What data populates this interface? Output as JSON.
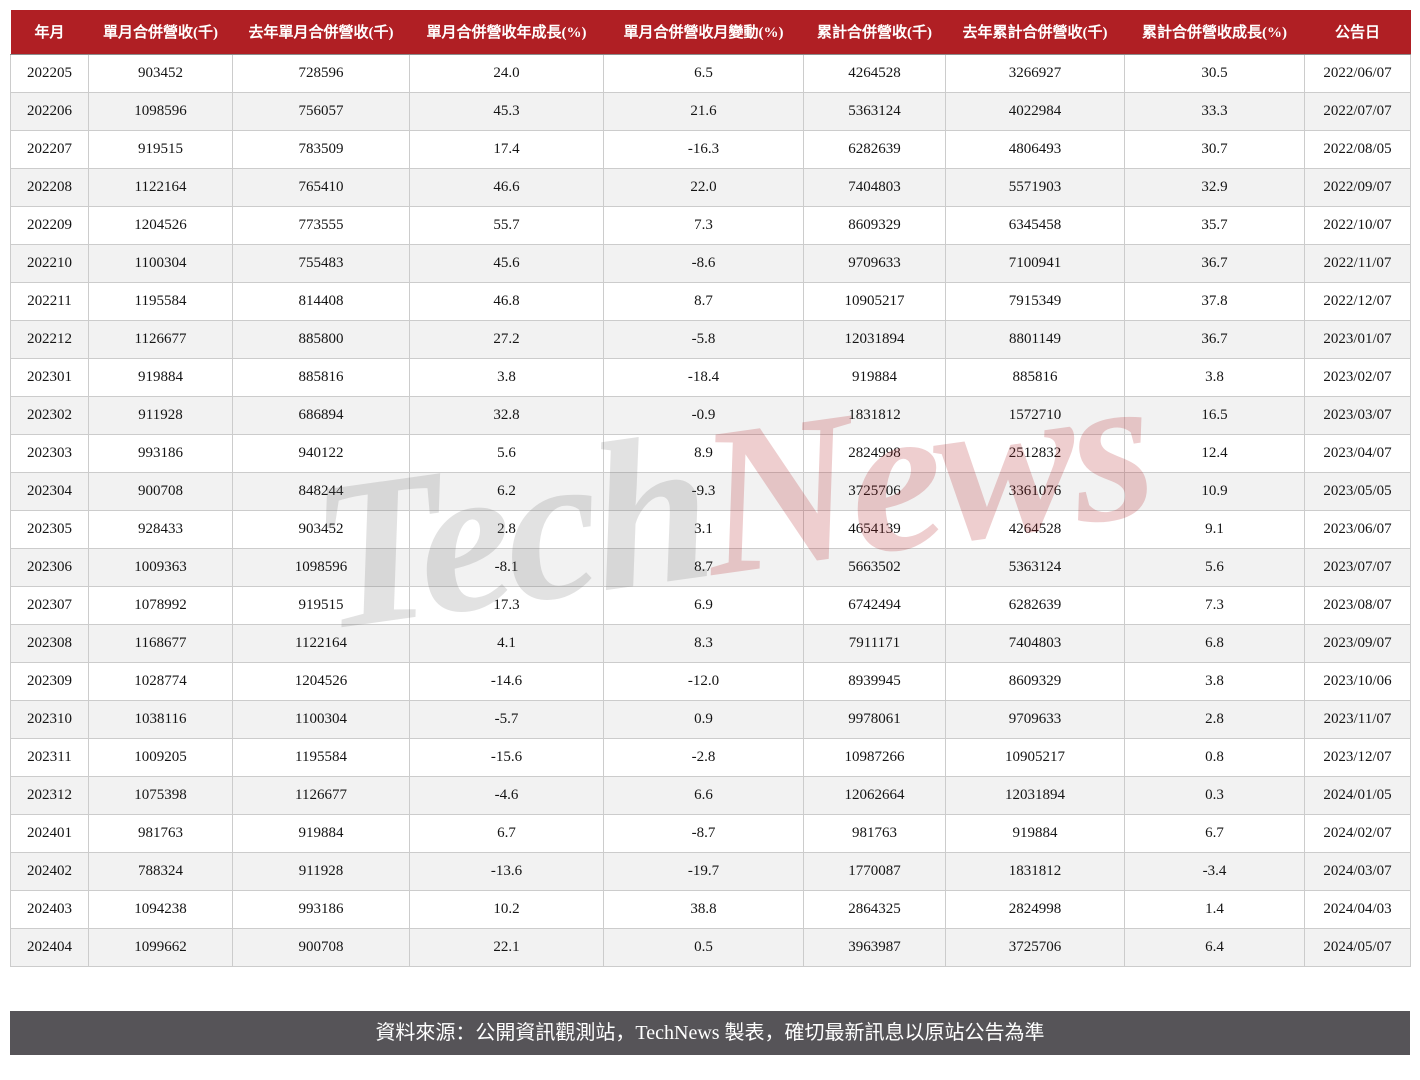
{
  "chart_data": {
    "type": "table",
    "columns": [
      "年月",
      "單月合併營收(千)",
      "去年單月合併營收(千)",
      "單月合併營收年成長(%)",
      "單月合併營收月變動(%)",
      "累計合併營收(千)",
      "去年累計合併營收(千)",
      "累計合併營收成長(%)",
      "公告日"
    ],
    "rows": [
      [
        "202205",
        "903452",
        "728596",
        "24.0",
        "6.5",
        "4264528",
        "3266927",
        "30.5",
        "2022/06/07"
      ],
      [
        "202206",
        "1098596",
        "756057",
        "45.3",
        "21.6",
        "5363124",
        "4022984",
        "33.3",
        "2022/07/07"
      ],
      [
        "202207",
        "919515",
        "783509",
        "17.4",
        "-16.3",
        "6282639",
        "4806493",
        "30.7",
        "2022/08/05"
      ],
      [
        "202208",
        "1122164",
        "765410",
        "46.6",
        "22.0",
        "7404803",
        "5571903",
        "32.9",
        "2022/09/07"
      ],
      [
        "202209",
        "1204526",
        "773555",
        "55.7",
        "7.3",
        "8609329",
        "6345458",
        "35.7",
        "2022/10/07"
      ],
      [
        "202210",
        "1100304",
        "755483",
        "45.6",
        "-8.6",
        "9709633",
        "7100941",
        "36.7",
        "2022/11/07"
      ],
      [
        "202211",
        "1195584",
        "814408",
        "46.8",
        "8.7",
        "10905217",
        "7915349",
        "37.8",
        "2022/12/07"
      ],
      [
        "202212",
        "1126677",
        "885800",
        "27.2",
        "-5.8",
        "12031894",
        "8801149",
        "36.7",
        "2023/01/07"
      ],
      [
        "202301",
        "919884",
        "885816",
        "3.8",
        "-18.4",
        "919884",
        "885816",
        "3.8",
        "2023/02/07"
      ],
      [
        "202302",
        "911928",
        "686894",
        "32.8",
        "-0.9",
        "1831812",
        "1572710",
        "16.5",
        "2023/03/07"
      ],
      [
        "202303",
        "993186",
        "940122",
        "5.6",
        "8.9",
        "2824998",
        "2512832",
        "12.4",
        "2023/04/07"
      ],
      [
        "202304",
        "900708",
        "848244",
        "6.2",
        "-9.3",
        "3725706",
        "3361076",
        "10.9",
        "2023/05/05"
      ],
      [
        "202305",
        "928433",
        "903452",
        "2.8",
        "3.1",
        "4654139",
        "4264528",
        "9.1",
        "2023/06/07"
      ],
      [
        "202306",
        "1009363",
        "1098596",
        "-8.1",
        "8.7",
        "5663502",
        "5363124",
        "5.6",
        "2023/07/07"
      ],
      [
        "202307",
        "1078992",
        "919515",
        "17.3",
        "6.9",
        "6742494",
        "6282639",
        "7.3",
        "2023/08/07"
      ],
      [
        "202308",
        "1168677",
        "1122164",
        "4.1",
        "8.3",
        "7911171",
        "7404803",
        "6.8",
        "2023/09/07"
      ],
      [
        "202309",
        "1028774",
        "1204526",
        "-14.6",
        "-12.0",
        "8939945",
        "8609329",
        "3.8",
        "2023/10/06"
      ],
      [
        "202310",
        "1038116",
        "1100304",
        "-5.7",
        "0.9",
        "9978061",
        "9709633",
        "2.8",
        "2023/11/07"
      ],
      [
        "202311",
        "1009205",
        "1195584",
        "-15.6",
        "-2.8",
        "10987266",
        "10905217",
        "0.8",
        "2023/12/07"
      ],
      [
        "202312",
        "1075398",
        "1126677",
        "-4.6",
        "6.6",
        "12062664",
        "12031894",
        "0.3",
        "2024/01/05"
      ],
      [
        "202401",
        "981763",
        "919884",
        "6.7",
        "-8.7",
        "981763",
        "919884",
        "6.7",
        "2024/02/07"
      ],
      [
        "202402",
        "788324",
        "911928",
        "-13.6",
        "-19.7",
        "1770087",
        "1831812",
        "-3.4",
        "2024/03/07"
      ],
      [
        "202403",
        "1094238",
        "993186",
        "10.2",
        "38.8",
        "2864325",
        "2824998",
        "1.4",
        "2024/04/03"
      ],
      [
        "202404",
        "1099662",
        "900708",
        "22.1",
        "0.5",
        "3963987",
        "3725706",
        "6.4",
        "2024/05/07"
      ]
    ],
    "title": "",
    "legend_position": "none",
    "grid": true
  },
  "watermark": {
    "tech": "Tech",
    "news": "News"
  },
  "footer": {
    "text": "資料來源：公開資訊觀測站，TechNews 製表，確切最新訊息以原站公告為準"
  },
  "colors": {
    "header_bg": "#b01f24",
    "header_text": "#ffffff",
    "row_alt": "#f2f2f2",
    "cell_border": "#cccccc",
    "footer_bg": "#565458",
    "footer_text": "#ffffff",
    "watermark_gray": "#6e6e6e",
    "watermark_red": "#b01f24"
  }
}
